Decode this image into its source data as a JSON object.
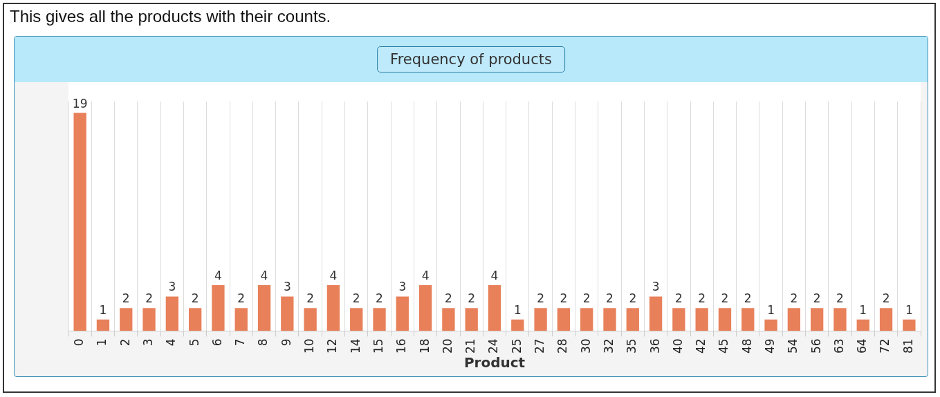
{
  "chart_data": {
    "type": "bar",
    "title": "Frequency of products",
    "xlabel": "Product",
    "annotations": [
      "This gives all the products with their counts."
    ],
    "categories": [
      "0",
      "1",
      "2",
      "3",
      "4",
      "5",
      "6",
      "7",
      "8",
      "9",
      "10",
      "12",
      "14",
      "15",
      "16",
      "18",
      "20",
      "21",
      "24",
      "25",
      "27",
      "28",
      "30",
      "32",
      "35",
      "36",
      "40",
      "42",
      "45",
      "48",
      "49",
      "54",
      "56",
      "63",
      "64",
      "72",
      "81"
    ],
    "values": [
      19,
      1,
      2,
      2,
      3,
      2,
      4,
      2,
      4,
      3,
      2,
      4,
      2,
      2,
      3,
      4,
      2,
      2,
      4,
      1,
      2,
      2,
      2,
      2,
      2,
      3,
      2,
      2,
      2,
      2,
      1,
      2,
      2,
      2,
      1,
      2,
      1
    ],
    "color": "#e8805a",
    "data_labels": true,
    "grid": "x",
    "tick_labels": "x"
  }
}
